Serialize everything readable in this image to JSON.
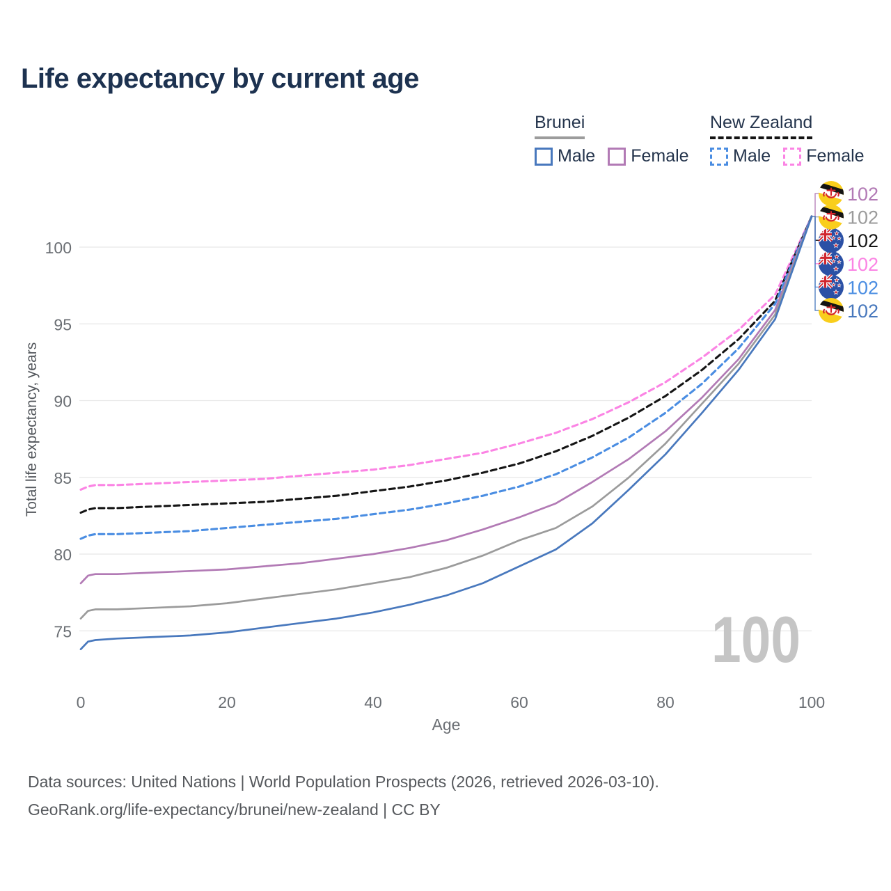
{
  "title": "Life expectancy by current age",
  "watermark_current_age": "100",
  "legend": {
    "groups": [
      {
        "country": "Brunei",
        "line_style": "solid",
        "header_underline_color": "#9c9c9c",
        "items": [
          {
            "label": "Male",
            "color": "#4878bd"
          },
          {
            "label": "Female",
            "color": "#b27ab5"
          }
        ]
      },
      {
        "country": "New Zealand",
        "line_style": "dashed",
        "header_underline_color": "#141414",
        "items": [
          {
            "label": "Male",
            "color": "#4a8de2"
          },
          {
            "label": "Female",
            "color": "#fb84e4"
          }
        ]
      }
    ]
  },
  "footer": {
    "line1": "Data sources: United Nations | World Population Prospects (2026, retrieved 2026-03-10).",
    "line2": "GeoRank.org/life-expectancy/brunei/new-zealand | CC BY"
  },
  "chart_data": {
    "type": "line",
    "title": "Life expectancy by current age",
    "xlabel": "Age",
    "ylabel": "Total life expectancy, years",
    "x_ticks": [
      0,
      20,
      40,
      60,
      80,
      100
    ],
    "y_ticks": [
      75,
      80,
      85,
      90,
      95,
      100
    ],
    "xlim": [
      0,
      100
    ],
    "ylim": [
      73,
      103
    ],
    "grid": "horizontal-only",
    "gridline_color": "#e8e8e8",
    "tick_color": "#6a6e73",
    "legend_position": "top-right",
    "current_age_label": "100",
    "x": [
      0,
      1,
      2,
      5,
      10,
      15,
      20,
      25,
      30,
      35,
      40,
      45,
      50,
      55,
      60,
      65,
      70,
      75,
      80,
      85,
      90,
      95,
      100
    ],
    "series": [
      {
        "name": "New Zealand Female",
        "country": "New Zealand",
        "sex": "Female",
        "flag": "new-zealand",
        "color": "#fb84e4",
        "dash": "dashed",
        "end_label": "102",
        "label_row": 3,
        "values": [
          84.2,
          84.4,
          84.5,
          84.5,
          84.6,
          84.7,
          84.8,
          84.9,
          85.1,
          85.3,
          85.5,
          85.8,
          86.2,
          86.6,
          87.2,
          87.9,
          88.8,
          89.9,
          91.2,
          92.8,
          94.6,
          96.9,
          102
        ]
      },
      {
        "name": "New Zealand (both sexes)",
        "country": "New Zealand",
        "sex": "Both",
        "flag": "new-zealand",
        "color": "#151515",
        "dash": "dashed",
        "end_label": "102",
        "label_row": 2,
        "values": [
          82.7,
          82.9,
          83.0,
          83.0,
          83.1,
          83.2,
          83.3,
          83.4,
          83.6,
          83.8,
          84.1,
          84.4,
          84.8,
          85.3,
          85.9,
          86.7,
          87.7,
          88.9,
          90.3,
          92.0,
          94.0,
          96.5,
          102
        ]
      },
      {
        "name": "New Zealand Male",
        "country": "New Zealand",
        "sex": "Male",
        "flag": "new-zealand",
        "color": "#4a8de2",
        "dash": "dashed",
        "end_label": "102",
        "label_row": 4,
        "values": [
          81.0,
          81.2,
          81.3,
          81.3,
          81.4,
          81.5,
          81.7,
          81.9,
          82.1,
          82.3,
          82.6,
          82.9,
          83.3,
          83.8,
          84.4,
          85.2,
          86.3,
          87.6,
          89.2,
          91.1,
          93.4,
          96.3,
          102
        ]
      },
      {
        "name": "Brunei Female",
        "country": "Brunei",
        "sex": "Female",
        "flag": "brunei",
        "color": "#b27ab5",
        "dash": "solid",
        "end_label": "102",
        "label_row": 0,
        "values": [
          78.1,
          78.6,
          78.7,
          78.7,
          78.8,
          78.9,
          79.0,
          79.2,
          79.4,
          79.7,
          80.0,
          80.4,
          80.9,
          81.6,
          82.4,
          83.3,
          84.7,
          86.2,
          88.0,
          90.2,
          92.7,
          95.9,
          102
        ]
      },
      {
        "name": "Brunei (both sexes)",
        "country": "Brunei",
        "sex": "Both",
        "flag": "brunei",
        "color": "#9b9b9b",
        "dash": "solid",
        "end_label": "102",
        "label_row": 1,
        "values": [
          75.8,
          76.3,
          76.4,
          76.4,
          76.5,
          76.6,
          76.8,
          77.1,
          77.4,
          77.7,
          78.1,
          78.5,
          79.1,
          79.9,
          80.9,
          81.7,
          83.1,
          85.0,
          87.2,
          89.8,
          92.4,
          95.6,
          102
        ]
      },
      {
        "name": "Brunei Male",
        "country": "Brunei",
        "sex": "Male",
        "flag": "brunei",
        "color": "#4878bd",
        "dash": "solid",
        "end_label": "102",
        "label_row": 5,
        "values": [
          73.8,
          74.3,
          74.4,
          74.5,
          74.6,
          74.7,
          74.9,
          75.2,
          75.5,
          75.8,
          76.2,
          76.7,
          77.3,
          78.1,
          79.2,
          80.3,
          82.0,
          84.2,
          86.5,
          89.2,
          92.0,
          95.3,
          102
        ]
      }
    ]
  }
}
